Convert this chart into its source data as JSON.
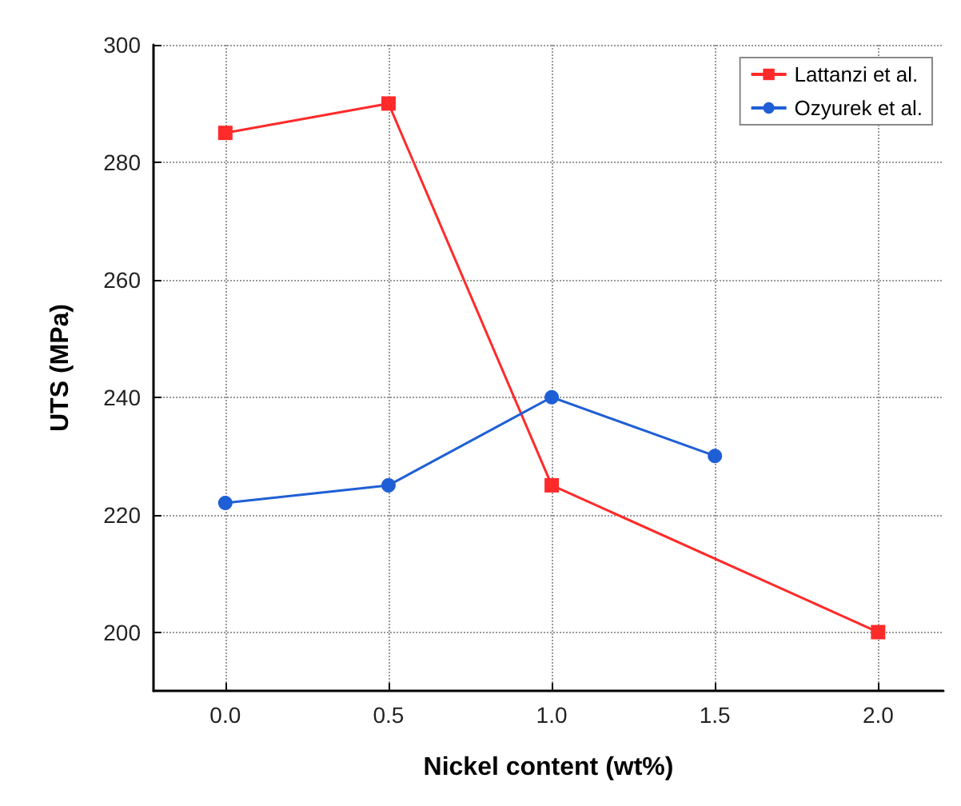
{
  "chart_data": {
    "type": "line",
    "xlabel": "Nickel content (wt%)",
    "ylabel": "UTS (MPa)",
    "xlim": [
      -0.22,
      2.2
    ],
    "xticks": [
      {
        "value": 0,
        "label": "0.0"
      },
      {
        "value": 0.5,
        "label": "0.5"
      },
      {
        "value": 1,
        "label": "1.0"
      },
      {
        "value": 1.5,
        "label": "1.5"
      },
      {
        "value": 2,
        "label": "2.0"
      }
    ],
    "ylim": [
      190,
      300
    ],
    "yticks": [
      200,
      220,
      240,
      260,
      280,
      300
    ],
    "grid": true,
    "legend": "top right",
    "marker": "square",
    "line_style": "solid",
    "series": [
      {
        "name": "Lattanzi et al.",
        "color": "#ff2a2a",
        "x": [
          0,
          0.5,
          1,
          2
        ],
        "values": [
          285,
          290,
          225,
          200
        ]
      },
      {
        "name": "Ozyurek et al.",
        "color": "#1f5fd6",
        "marker": "circle",
        "x": [
          0,
          0.5,
          1,
          1.5
        ],
        "values": [
          222,
          225,
          240,
          230
        ]
      }
    ]
  }
}
